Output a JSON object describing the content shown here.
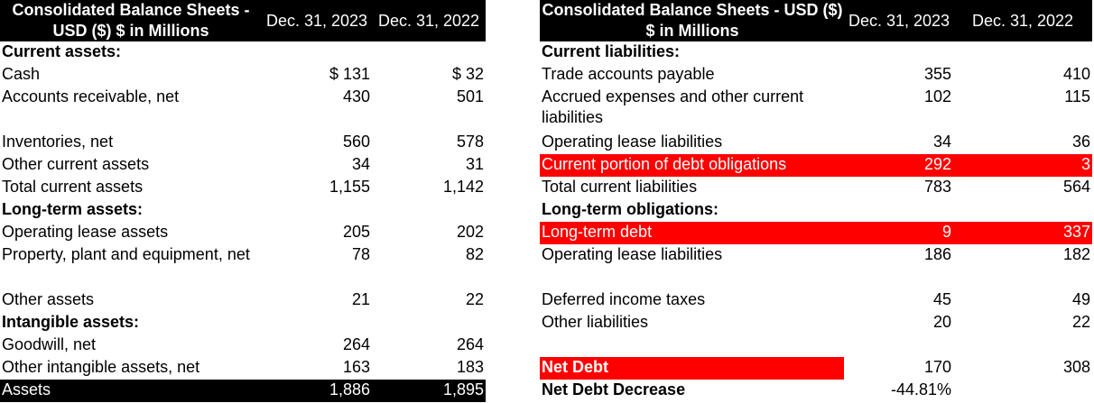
{
  "left_table": {
    "header": {
      "title": "Consolidated Balance Sheets - USD ($) $ in Millions",
      "col1": "Dec. 31, 2023",
      "col2": "Dec. 31, 2022"
    },
    "rows": [
      {
        "label": "Current assets:",
        "v1": "",
        "v2": ""
      },
      {
        "label": "Cash",
        "v1": "$ 131",
        "v2": "$ 32"
      },
      {
        "label": "Accounts receivable, net",
        "v1": "430",
        "v2": "501"
      },
      {
        "label": "Inventories, net",
        "v1": "560",
        "v2": "578"
      },
      {
        "label": "Other current assets",
        "v1": "34",
        "v2": "31"
      },
      {
        "label": "Total current assets",
        "v1": "1,155",
        "v2": "1,142"
      },
      {
        "label": "Long-term assets:",
        "v1": "",
        "v2": ""
      },
      {
        "label": "Operating lease assets",
        "v1": "205",
        "v2": "202"
      },
      {
        "label": "Property, plant and equipment, net",
        "v1": "78",
        "v2": "82"
      },
      {
        "label": "Other assets",
        "v1": "21",
        "v2": "22"
      },
      {
        "label": "Intangible assets:",
        "v1": "",
        "v2": ""
      },
      {
        "label": "Goodwill, net",
        "v1": "264",
        "v2": "264"
      },
      {
        "label": "Other intangible assets, net",
        "v1": "163",
        "v2": "183"
      },
      {
        "label": "Assets",
        "v1": "1,886",
        "v2": "1,895"
      }
    ]
  },
  "right_table": {
    "header": {
      "title": "Consolidated Balance Sheets - USD ($) $ in Millions",
      "col1": "Dec. 31, 2023",
      "col2": "Dec. 31, 2022"
    },
    "rows": [
      {
        "label": "Current liabilities:",
        "v1": "",
        "v2": ""
      },
      {
        "label": "Trade accounts payable",
        "v1": "355",
        "v2": "410"
      },
      {
        "label": "Accrued expenses and other current liabilities",
        "v1": "102",
        "v2": "115"
      },
      {
        "label": "Operating lease liabilities",
        "v1": "34",
        "v2": "36"
      },
      {
        "label": "Current portion of debt obligations",
        "v1": "292",
        "v2": "3"
      },
      {
        "label": "Total current liabilities",
        "v1": "783",
        "v2": "564"
      },
      {
        "label": "Long-term obligations:",
        "v1": "",
        "v2": ""
      },
      {
        "label": "Long-term debt",
        "v1": "9",
        "v2": "337"
      },
      {
        "label": "Operating lease liabilities",
        "v1": "186",
        "v2": "182"
      },
      {
        "label": "Deferred income taxes",
        "v1": "45",
        "v2": "49"
      },
      {
        "label": "Other liabilities",
        "v1": "20",
        "v2": "22"
      },
      {
        "label": "Net Debt",
        "v1": "170",
        "v2": "308"
      },
      {
        "label": "Net Debt Decrease",
        "v1": "-44.81%",
        "v2": ""
      }
    ]
  },
  "colors": {
    "highlight": "#ff0000",
    "header_bg": "#000000"
  }
}
